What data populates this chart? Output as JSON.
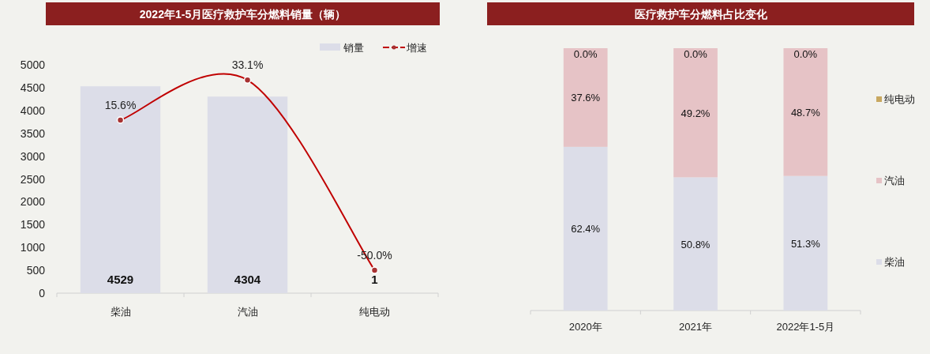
{
  "chart_data": [
    {
      "type": "bar",
      "title": "2022年1-5月医疗救护车分燃料销量（辆）",
      "categories": [
        "柴油",
        "汽油",
        "纯电动"
      ],
      "series": [
        {
          "name": "销量",
          "color": "#dcdde8",
          "values": [
            4529,
            4304,
            1
          ],
          "value_labels": [
            "4529",
            "4304",
            "1"
          ]
        },
        {
          "name": "增速",
          "type": "line",
          "axis": "y2",
          "color": "#c00000",
          "marker": "circle",
          "line_style": "solid",
          "values": [
            15.6,
            33.1,
            -50.0
          ],
          "value_labels": [
            "15.6%",
            "33.1%",
            "-50.0%"
          ]
        }
      ],
      "ylim": [
        0,
        5000
      ],
      "yticks": [
        0,
        500,
        1000,
        1500,
        2000,
        2500,
        3000,
        3500,
        4000,
        4500,
        5000
      ],
      "legend": "top right"
    },
    {
      "type": "bar",
      "title": "医疗救护车分燃料占比变化",
      "categories": [
        "2020年",
        "2021年",
        "2022年1-5月"
      ],
      "stacked": true,
      "ylim": [
        0,
        100
      ],
      "tick_labels": "x",
      "legend": "right",
      "series": [
        {
          "name": "柴油",
          "color": "#dcdde8",
          "values": [
            62.4,
            50.8,
            51.3
          ],
          "value_labels": [
            "62.4%",
            "50.8%",
            "51.3%"
          ]
        },
        {
          "name": "汽油",
          "color": "#e6c3c6",
          "values": [
            37.6,
            49.2,
            48.7
          ],
          "value_labels": [
            "37.6%",
            "49.2%",
            "48.7%"
          ]
        },
        {
          "name": "纯电动",
          "color": "#c8a860",
          "values": [
            0.0,
            0.0,
            0.0
          ],
          "value_labels": [
            "0.0%",
            "0.0%",
            "0.0%"
          ]
        }
      ]
    }
  ]
}
